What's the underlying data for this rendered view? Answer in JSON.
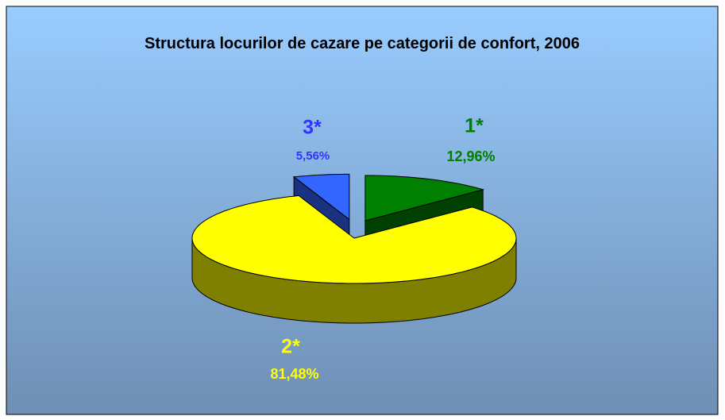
{
  "chart_data": {
    "type": "pie3d",
    "title": "Structura locurilor de cazare pe categorii de confort, 2006",
    "categories": [
      "1*",
      "2*",
      "3*"
    ],
    "values": [
      12.96,
      81.48,
      5.56
    ],
    "value_labels": [
      "12,96%",
      "81,48%",
      "5,56%"
    ],
    "colors": [
      "#008000",
      "#ffff00",
      "#3366ff"
    ]
  }
}
